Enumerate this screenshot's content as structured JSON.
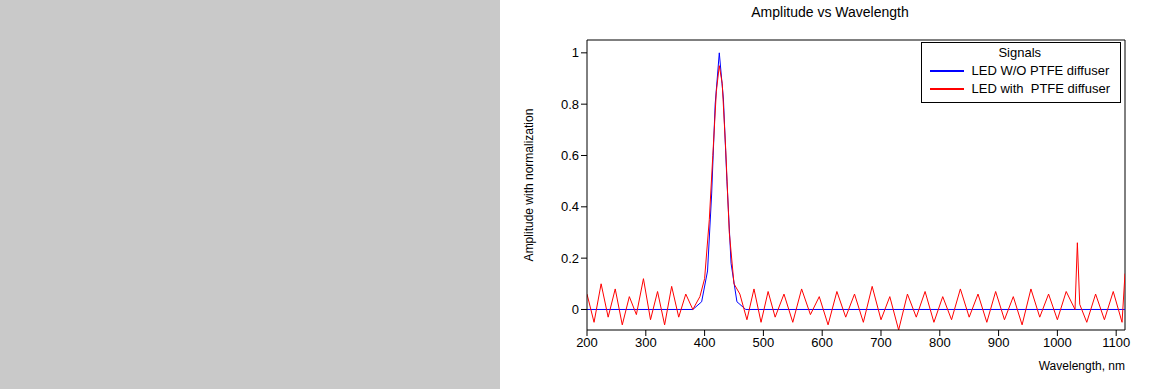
{
  "chart_data": {
    "type": "line",
    "title": "Amplitude vs Wavelength",
    "x_label": "Wavelength, nm",
    "y_label": "Amplitude with normalization",
    "legend_title": "Signals",
    "legend": "top-right",
    "grid": false,
    "xlim": [
      200,
      1115
    ],
    "xticks": [
      200,
      300,
      400,
      500,
      600,
      700,
      800,
      900,
      1000,
      1100
    ],
    "ylim": [
      -0.08,
      1.05
    ],
    "yticks": [
      0,
      0.2,
      0.4,
      0.6,
      0.8,
      1
    ],
    "series": [
      {
        "name": "LED W/O PTFE diffuser",
        "color": "#0000ff",
        "x": [
          200,
          380,
          395,
          405,
          412,
          418,
          425,
          432,
          438,
          445,
          455,
          470,
          1115
        ],
        "values": [
          0,
          0,
          0.03,
          0.15,
          0.45,
          0.8,
          1.0,
          0.82,
          0.5,
          0.18,
          0.03,
          0,
          0
        ]
      },
      {
        "name": "LED with  PTFE diffuser",
        "color": "#ff0000",
        "x": [
          200,
          212,
          224,
          236,
          248,
          260,
          272,
          284,
          296,
          308,
          320,
          332,
          344,
          356,
          368,
          380,
          392,
          400,
          408,
          414,
          420,
          425,
          430,
          436,
          442,
          450,
          460,
          472,
          484,
          496,
          508,
          520,
          535,
          550,
          565,
          580,
          595,
          610,
          625,
          640,
          655,
          670,
          685,
          700,
          715,
          730,
          745,
          760,
          775,
          790,
          805,
          820,
          835,
          850,
          865,
          880,
          895,
          910,
          925,
          940,
          955,
          970,
          985,
          1000,
          1015,
          1030,
          1034,
          1038,
          1050,
          1065,
          1080,
          1095,
          1110,
          1115
        ],
        "values": [
          0.06,
          -0.05,
          0.1,
          -0.03,
          0.08,
          -0.06,
          0.05,
          -0.02,
          0.12,
          -0.04,
          0.07,
          -0.06,
          0.09,
          -0.03,
          0.06,
          0.0,
          0.05,
          0.12,
          0.35,
          0.6,
          0.85,
          0.95,
          0.88,
          0.62,
          0.3,
          0.1,
          0.06,
          -0.04,
          0.08,
          -0.05,
          0.07,
          -0.03,
          0.06,
          -0.05,
          0.08,
          -0.02,
          0.05,
          -0.06,
          0.07,
          -0.03,
          0.06,
          -0.05,
          0.09,
          -0.04,
          0.05,
          -0.08,
          0.06,
          -0.03,
          0.07,
          -0.05,
          0.05,
          -0.04,
          0.08,
          -0.03,
          0.06,
          -0.05,
          0.07,
          -0.04,
          0.05,
          -0.06,
          0.08,
          -0.03,
          0.06,
          -0.04,
          0.07,
          0.0,
          0.26,
          0.02,
          -0.05,
          0.06,
          -0.04,
          0.07,
          -0.05,
          0.14
        ]
      }
    ]
  }
}
